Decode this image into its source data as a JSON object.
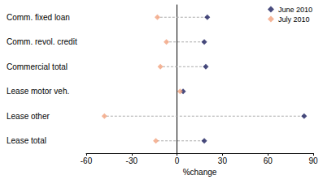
{
  "chart_data": {
    "type": "scatter",
    "orientation": "horizontal",
    "categories": [
      "Comm. fixed loan",
      "Comm. revol. credit",
      "Commercial total",
      "Lease motor veh.",
      "Lease other",
      "Lease total"
    ],
    "series": [
      {
        "name": "June 2010",
        "color": "#1b1f5e",
        "marker": "diamond",
        "values": [
          20,
          18,
          19,
          4,
          84,
          18
        ]
      },
      {
        "name": "July 2010",
        "color": "#f2a37e",
        "marker": "diamond",
        "values": [
          -13,
          -7,
          -11,
          2,
          -48,
          -14
        ]
      }
    ],
    "xlabel": "%change",
    "xlim": [
      -60,
      90
    ],
    "xticks": [
      -60,
      -30,
      0,
      30,
      60,
      90
    ],
    "legend": "upper right",
    "grid": false
  }
}
